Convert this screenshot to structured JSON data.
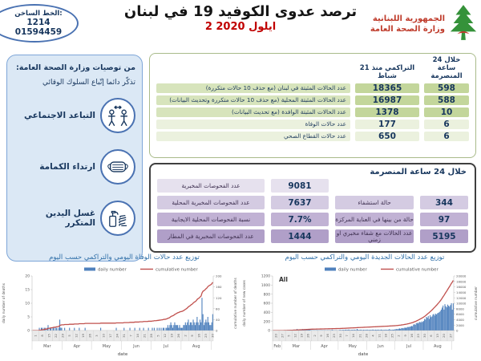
{
  "colors": {
    "accent_navy": "#17365d",
    "date_red": "#c00000",
    "ministry_red": "#bf3b2b",
    "green_label_bg": "#d7e4bc",
    "green_value_bg": "#c3d69b",
    "green_light_bg": "#ebf1de",
    "purple_tints": [
      "#e6e1ee",
      "#d4cbe2",
      "#c1b2d4",
      "#b09fc8"
    ],
    "bar_blue": "#4f81bd",
    "line_red": "#c0504d",
    "sidebar_blue_bg": "#dbe8f5"
  },
  "header": {
    "hotline": {
      "label": "الخط الساخن:",
      "number1": "1214",
      "number2": "01594459"
    },
    "title": "ترصد عدوى الكوفيد 19 في لبنان",
    "date": "2 ايلول 2020",
    "ministry": {
      "line1": "الجمهورية اللبنانية",
      "line2": "وزارة الصحة العامة",
      "logo_icon": "cedar-tree-icon"
    }
  },
  "sidebar": {
    "title": "من توصيات وزارة الصحة العامة:",
    "subtitle": "تذكّر دائما إتّباع السلوك الوقائي",
    "items": [
      {
        "icon": "social-distancing-icon",
        "label": "التباعد الاجتماعي"
      },
      {
        "icon": "face-mask-icon",
        "label": "ارتداء الكمامة"
      },
      {
        "icon": "hand-sanitizer-icon",
        "label": "غسل اليدين المتكرر"
      }
    ]
  },
  "cases_table": {
    "col_last24h": "خلال 24 ساعة المنصرمة",
    "col_cumulative": "التراكمي منذ 21 شباط",
    "rows": [
      {
        "label": "عدد الحالات المثبتة في لبنان  (مع حذف 10 حالات متكررة)",
        "cumulative": "18365",
        "last24h": "598"
      },
      {
        "label": "عدد الحالات المثبتة المحلية (مع حذف 10 حالات متكررة وتحديث البيانات)",
        "cumulative": "16987",
        "last24h": "588"
      },
      {
        "label": "عدد الحالات المثبتة الوافدة (مع تحديث البيانات)",
        "cumulative": "1378",
        "last24h": "10"
      },
      {
        "label": "عدد حالات الوفاة",
        "cumulative": "177",
        "last24h": "6"
      },
      {
        "label": "عدد حالات القطاع الصحي",
        "cumulative": "650",
        "last24h": "6"
      }
    ]
  },
  "tests_table": {
    "header": "خلال 24 ساعة المنصرمة",
    "rows": [
      {
        "left_value": "9081",
        "left_label": "عدد الفحوصات المخبرية",
        "right_value": "",
        "right_label": ""
      },
      {
        "left_value": "7637",
        "left_label": "عدد الفحوصات المخبرية المحلية",
        "right_value": "344",
        "right_label": "حالة استشفاء"
      },
      {
        "left_value": "7.7%",
        "left_label": "نسبة الفحوصات المحلية الايجابية",
        "right_value": "97",
        "right_label": "حالة من بينها في العناية المركزة"
      },
      {
        "left_value": "1444",
        "left_label": "عدد الفحوصات المخبرية في المطار",
        "right_value": "5195",
        "right_label": "عدد الحالات مع شفاء مخبري او زمني"
      }
    ]
  },
  "chart_data": [
    {
      "type": "bar",
      "title": "توزيع عدد حالات  الوفاة اليومي والتراكمي حسب اليوم",
      "inner_label": "",
      "xlabel": "date",
      "ylabel_left": "daily number of deaths",
      "ylabel_right": "cumulative number of deaths",
      "ylim_left": [
        0,
        20
      ],
      "yticks_left": [
        0,
        5,
        10,
        15,
        20
      ],
      "ylim_right": [
        0,
        200
      ],
      "yticks_right": [
        0,
        40,
        80,
        120,
        160,
        200
      ],
      "legend": [
        "daily number",
        "cumulative number"
      ],
      "legend_position": "top",
      "grid": false,
      "months": [
        {
          "label": "Mar",
          "days": 31
        },
        {
          "label": "Apr",
          "days": 30
        },
        {
          "label": "May",
          "days": 31
        },
        {
          "label": "Jun",
          "days": 30
        },
        {
          "label": "Jul",
          "days": 31
        },
        {
          "label": "Aug",
          "days": 31
        }
      ],
      "day_tick_interval": 7,
      "day_tick_labels": [
        "1",
        "8",
        "15",
        "22",
        "29",
        "5",
        "12",
        "19",
        "26",
        "3",
        "10",
        "17",
        "24",
        "31",
        "7",
        "14",
        "21",
        "28",
        "5",
        "12",
        "19",
        "26",
        "2",
        "9",
        "16",
        "23",
        "30"
      ],
      "series": [
        {
          "name": "daily number",
          "type": "bar",
          "color": "#4f81bd",
          "values": [
            0,
            0,
            0,
            0,
            0,
            0,
            0,
            1,
            0,
            1,
            1,
            0,
            1,
            1,
            0,
            1,
            2,
            0,
            1,
            1,
            0,
            1,
            1,
            0,
            1,
            1,
            0,
            1,
            4,
            1,
            1,
            0,
            0,
            1,
            0,
            0,
            0,
            0,
            1,
            0,
            0,
            0,
            0,
            1,
            0,
            0,
            0,
            0,
            1,
            0,
            0,
            0,
            0,
            0,
            1,
            0,
            0,
            0,
            0,
            0,
            0,
            0,
            0,
            0,
            0,
            0,
            0,
            0,
            0,
            0,
            1,
            0,
            0,
            0,
            0,
            0,
            0,
            0,
            0,
            0,
            0,
            0,
            0,
            0,
            0,
            0,
            1,
            0,
            0,
            0,
            0,
            0,
            0,
            0,
            1,
            0,
            0,
            0,
            0,
            0,
            1,
            0,
            0,
            0,
            0,
            1,
            0,
            0,
            0,
            0,
            1,
            0,
            0,
            0,
            1,
            0,
            0,
            0,
            0,
            1,
            0,
            0,
            0,
            1,
            0,
            1,
            0,
            0,
            1,
            0,
            1,
            0,
            1,
            0,
            1,
            1,
            0,
            1,
            1,
            2,
            1,
            2,
            3,
            2,
            1,
            2,
            3,
            2,
            2,
            2,
            1,
            2,
            1,
            1,
            1,
            2,
            2,
            3,
            2,
            3,
            4,
            2,
            3,
            3,
            2,
            4,
            3,
            2,
            3,
            5,
            3,
            2,
            4,
            3,
            12,
            6,
            2,
            3,
            4,
            3,
            5,
            3,
            2,
            2,
            3,
            6
          ]
        },
        {
          "name": "cumulative number",
          "type": "line",
          "color": "#c0504d",
          "derived": "running_total_of_daily_series",
          "end_value": 177
        }
      ]
    },
    {
      "type": "bar",
      "title": "توزيع عدد الحالات الجديدة اليومي والتراكمي حسب اليوم",
      "inner_label": "All",
      "xlabel": "date",
      "ylabel_left": "daily number of new cases",
      "ylabel_right": "cumulative number",
      "ylim_left": [
        0,
        1200
      ],
      "yticks_left": [
        0,
        200,
        400,
        600,
        800,
        1000,
        1200
      ],
      "ylim_right": [
        0,
        20000
      ],
      "yticks_right": [
        0,
        2000,
        4000,
        6000,
        8000,
        10000,
        12000,
        14000,
        16000,
        18000,
        20000
      ],
      "legend": [
        "daily number",
        "cumulative number"
      ],
      "legend_position": "top",
      "grid": false,
      "months": [
        {
          "label": "Feb",
          "days": 10
        },
        {
          "label": "Mar",
          "days": 31
        },
        {
          "label": "Apr",
          "days": 30
        },
        {
          "label": "May",
          "days": 31
        },
        {
          "label": "Jun",
          "days": 30
        },
        {
          "label": "Jul",
          "days": 31
        },
        {
          "label": "Aug",
          "days": 31
        }
      ],
      "day_tick_interval": 7,
      "day_tick_labels": [
        "20",
        "27",
        "5",
        "12",
        "19",
        "26",
        "2",
        "9",
        "16",
        "23",
        "30",
        "7",
        "14",
        "21",
        "28",
        "4",
        "11",
        "18",
        "25",
        "2",
        "9",
        "16",
        "23",
        "30",
        "6",
        "13",
        "20",
        "27"
      ],
      "series": [
        {
          "name": "daily number",
          "type": "bar",
          "color": "#4f81bd",
          "values": [
            1,
            0,
            1,
            0,
            0,
            1,
            0,
            0,
            0,
            0,
            2,
            3,
            4,
            6,
            9,
            9,
            13,
            10,
            16,
            9,
            14,
            12,
            19,
            21,
            10,
            15,
            35,
            17,
            21,
            14,
            16,
            11,
            32,
            18,
            12,
            16,
            14,
            21,
            30,
            17,
            21,
            12,
            9,
            7,
            10,
            8,
            6,
            9,
            11,
            7,
            8,
            9,
            6,
            10,
            8,
            7,
            9,
            8,
            6,
            9,
            8,
            7,
            9,
            8,
            20,
            9,
            8,
            7,
            9,
            8,
            3,
            8,
            12,
            15,
            10,
            14,
            18,
            12,
            16,
            20,
            14,
            18,
            22,
            15,
            12,
            15,
            18,
            14,
            20,
            16,
            12,
            36,
            18,
            14,
            16,
            20,
            15,
            12,
            18,
            14,
            16,
            15,
            20,
            15,
            12,
            18,
            14,
            16,
            22,
            17,
            13,
            19,
            15,
            18,
            20,
            14,
            16,
            21,
            17,
            13,
            18,
            15,
            20,
            16,
            14,
            19,
            32,
            17,
            15,
            20,
            18,
            21,
            25,
            30,
            35,
            28,
            40,
            45,
            38,
            50,
            55,
            48,
            60,
            65,
            58,
            70,
            80,
            75,
            85,
            90,
            100,
            95,
            130,
            140,
            125,
            160,
            170,
            155,
            180,
            190,
            175,
            200,
            188,
            210,
            255,
            241,
            300,
            280,
            320,
            255,
            336,
            294,
            310,
            350,
            365,
            330,
            370,
            355,
            380,
            389,
            406,
            430,
            460,
            505,
            550,
            460,
            580,
            535,
            510,
            570,
            545,
            525,
            560,
            602,
            459,
            598
          ]
        },
        {
          "name": "cumulative number",
          "type": "line",
          "color": "#c0504d",
          "derived": "running_total_of_daily_series",
          "end_value": 18365
        }
      ]
    }
  ]
}
